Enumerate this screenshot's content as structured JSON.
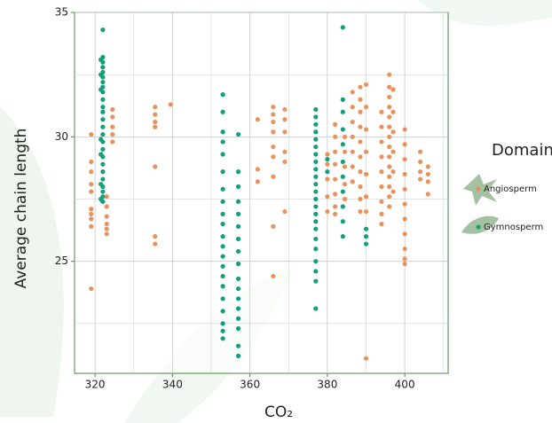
{
  "chart_data": {
    "type": "scatter",
    "x_label": "CO₂",
    "y_label": "Average chain length",
    "legend_title": "Domain",
    "legend_position": "right",
    "grid": true,
    "xlim": [
      314.7,
      411.2
    ],
    "xticks": [
      320,
      340,
      360,
      380,
      400
    ],
    "ylim": [
      20.5,
      35
    ],
    "yticks": [
      25,
      30,
      35
    ],
    "series": [
      {
        "name": "Angiosperm",
        "color": "#e8935e",
        "x": [
          319,
          319,
          319,
          319,
          319,
          319,
          319,
          319,
          319,
          319,
          323,
          323,
          323,
          323,
          323,
          323,
          324.5,
          324.5,
          324.5,
          324.5,
          324.5,
          335.5,
          335.5,
          335.5,
          335.5,
          335.5,
          335.5,
          335.5,
          339.5,
          362,
          362,
          362,
          366,
          366,
          366,
          366,
          366,
          366,
          366,
          366,
          366,
          369,
          369,
          369,
          369,
          369,
          369,
          380,
          380,
          380,
          380,
          380,
          382,
          382,
          382,
          382,
          382,
          382,
          382,
          382,
          384.5,
          384.5,
          384.5,
          384.5,
          384.5,
          386.5,
          386.5,
          386.5,
          386.5,
          386.5,
          386.5,
          386.5,
          388.5,
          388.5,
          388.5,
          388.5,
          388.5,
          388.5,
          388.5,
          388.5,
          388.5,
          388.5,
          390,
          390,
          390,
          390,
          390,
          390,
          390,
          390,
          394,
          394,
          394,
          394,
          394,
          394,
          394,
          394,
          394,
          396,
          396,
          396,
          396,
          396,
          396,
          396,
          396,
          396,
          396,
          396,
          396,
          396,
          396,
          397,
          397,
          397,
          397,
          397,
          397,
          400,
          400,
          400,
          400,
          400,
          400,
          400,
          400,
          400,
          400,
          400,
          404,
          404,
          404,
          404,
          406,
          406,
          406,
          406
        ],
        "values": [
          30.1,
          29.0,
          28.6,
          28.1,
          27.8,
          27.1,
          26.9,
          26.7,
          26.4,
          23.9,
          27.6,
          27.2,
          26.8,
          26.5,
          26.3,
          26.1,
          31.1,
          30.8,
          30.4,
          30.1,
          29.8,
          31.2,
          30.9,
          30.6,
          30.4,
          28.8,
          26.0,
          25.7,
          31.3,
          30.7,
          28.7,
          28.2,
          31.2,
          30.9,
          30.6,
          30.2,
          29.6,
          29.2,
          28.4,
          26.4,
          24.4,
          31.1,
          30.7,
          30.2,
          29.4,
          29.0,
          27.0,
          29.3,
          28.9,
          28.3,
          27.6,
          27.0,
          30.5,
          30.0,
          29.4,
          28.9,
          28.3,
          27.7,
          27.2,
          26.9,
          30.0,
          29.4,
          28.8,
          28.1,
          27.5,
          31.8,
          31.2,
          30.6,
          30.0,
          29.4,
          28.8,
          28.2,
          32.0,
          31.5,
          31.0,
          30.4,
          29.8,
          29.2,
          28.6,
          28.0,
          27.5,
          27.0,
          32.1,
          31.2,
          30.3,
          29.4,
          28.5,
          27.6,
          27.0,
          21.1,
          31.0,
          30.4,
          29.8,
          29.2,
          28.6,
          28.0,
          27.4,
          26.9,
          26.5,
          32.5,
          32.0,
          31.6,
          31.2,
          30.8,
          30.4,
          30.0,
          29.6,
          29.2,
          28.8,
          28.4,
          28.0,
          27.6,
          27.2,
          31.9,
          31.0,
          30.2,
          29.4,
          28.6,
          27.8,
          30.3,
          29.7,
          29.1,
          28.5,
          27.9,
          27.3,
          26.7,
          26.1,
          25.5,
          25.1,
          24.9,
          29.4,
          29.0,
          28.6,
          28.3,
          28.8,
          28.5,
          28.2,
          27.7
        ]
      },
      {
        "name": "Gymnosperm",
        "color": "#12a07a",
        "x": [
          322,
          322,
          322,
          322,
          322,
          322,
          322,
          322,
          322,
          322,
          322,
          322,
          322,
          322,
          322,
          322,
          322,
          322,
          322,
          322,
          322,
          322,
          322,
          322,
          322,
          321.5,
          321.5,
          321.5,
          321.5,
          321.5,
          321.5,
          321.5,
          353,
          353,
          353,
          353,
          353,
          353,
          353,
          353,
          353,
          353,
          353,
          353,
          353,
          353,
          353,
          353,
          353,
          353,
          353,
          353,
          353,
          357,
          357,
          357,
          357,
          357,
          357,
          357,
          357,
          357,
          357,
          357,
          357,
          357,
          357,
          357,
          357,
          357,
          377,
          377,
          377,
          377,
          377,
          377,
          377,
          377,
          377,
          377,
          377,
          377,
          377,
          377,
          377,
          377,
          377,
          377,
          377,
          377,
          377,
          377,
          377,
          384,
          384,
          384,
          384,
          384,
          384,
          384,
          384,
          384,
          384,
          384,
          390,
          390,
          390,
          380,
          380
        ],
        "values": [
          34.3,
          33.2,
          33.0,
          32.8,
          32.6,
          32.4,
          32.2,
          32.0,
          31.8,
          31.5,
          31.2,
          31.0,
          30.7,
          30.4,
          30.1,
          29.8,
          29.5,
          29.2,
          28.9,
          28.6,
          28.3,
          28.0,
          27.8,
          27.6,
          27.4,
          33.1,
          32.5,
          31.9,
          29.9,
          29.3,
          28.1,
          27.5,
          31.7,
          31.0,
          30.2,
          29.8,
          29.3,
          28.6,
          27.9,
          27.4,
          26.9,
          26.5,
          26.0,
          25.6,
          25.2,
          24.8,
          24.4,
          24.0,
          23.5,
          23.0,
          22.5,
          22.2,
          21.9,
          30.1,
          28.6,
          28.0,
          27.4,
          26.9,
          26.4,
          25.9,
          25.4,
          24.9,
          24.3,
          23.9,
          23.5,
          23.1,
          22.7,
          22.3,
          21.6,
          21.2,
          31.1,
          30.8,
          30.5,
          30.2,
          29.9,
          29.6,
          29.3,
          29.0,
          28.7,
          28.4,
          28.1,
          27.8,
          27.5,
          27.2,
          26.9,
          26.6,
          26.3,
          25.9,
          25.5,
          25.0,
          24.6,
          24.2,
          23.1,
          34.4,
          31.5,
          31.0,
          30.3,
          29.7,
          29.0,
          28.4,
          27.8,
          27.2,
          26.6,
          26.0,
          26.3,
          26.0,
          25.7,
          29.1,
          28.6
        ]
      }
    ]
  }
}
